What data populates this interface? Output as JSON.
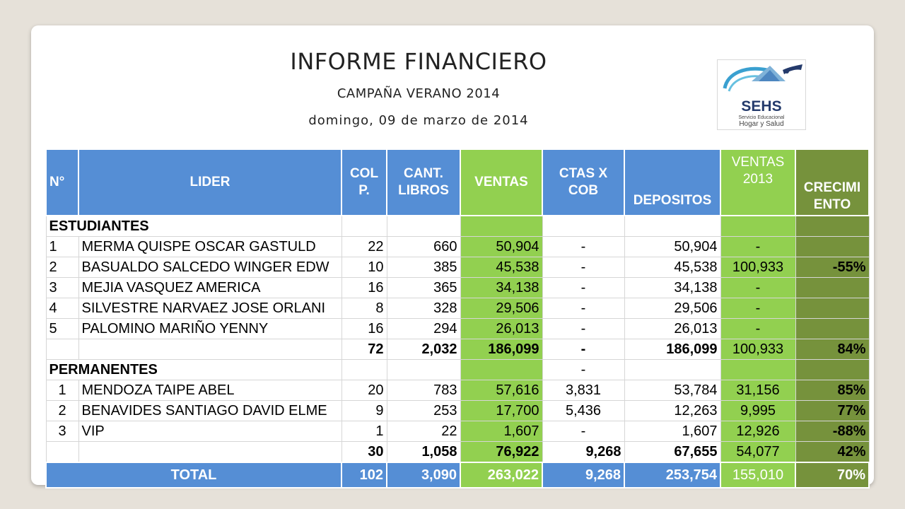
{
  "title": "INFORME FINANCIERO",
  "subtitle": "CAMPAÑA VERANO 2014",
  "date": "domingo, 09 de marzo de 2014",
  "logo": {
    "name": "SEHS",
    "line1": "Servicio Educacional",
    "line2": "Hogar y Salud"
  },
  "colors": {
    "blue_header": "#558ed5",
    "green": "#92d050",
    "dark_green": "#76923c"
  },
  "headers": {
    "n": "N°",
    "lider": "LIDER",
    "col_line1": "COL",
    "col_line2": "P.",
    "cant_line1": "CANT.",
    "cant_line2": "LIBROS",
    "ventas": "VENTAS",
    "ctas_line1": "CTAS X",
    "ctas_line2": "COB",
    "depositos": "DEPOSITOS",
    "v2013_line1": "VENTAS",
    "v2013_line2": "2013",
    "crec_line1": "CRECIMI",
    "crec_line2": "ENTO"
  },
  "sections": [
    {
      "name": "ESTUDIANTES",
      "ctas_cell": "",
      "rows": [
        {
          "n": "1",
          "lider": "MERMA QUISPE OSCAR GASTULD",
          "col": "22",
          "cant": "660",
          "ventas": "50,904",
          "ctas": "-",
          "depositos": "50,904",
          "v2013": "-",
          "crec": ""
        },
        {
          "n": "2",
          "lider": "BASUALDO SALCEDO WINGER EDW",
          "col": "10",
          "cant": "385",
          "ventas": "45,538",
          "ctas": "-",
          "depositos": "45,538",
          "v2013": "100,933",
          "crec": "-55%"
        },
        {
          "n": "3",
          "lider": "MEJIA VASQUEZ AMERICA",
          "col": "16",
          "cant": "365",
          "ventas": "34,138",
          "ctas": "-",
          "depositos": "34,138",
          "v2013": "-",
          "crec": ""
        },
        {
          "n": "4",
          "lider": "SILVESTRE NARVAEZ JOSE ORLANI",
          "col": "8",
          "cant": "328",
          "ventas": "29,506",
          "ctas": "-",
          "depositos": "29,506",
          "v2013": "-",
          "crec": ""
        },
        {
          "n": "5",
          "lider": "PALOMINO MARIÑO YENNY",
          "col": "16",
          "cant": "294",
          "ventas": "26,013",
          "ctas": "-",
          "depositos": "26,013",
          "v2013": "-",
          "crec": ""
        }
      ],
      "subtotal": {
        "col": "72",
        "cant": "2,032",
        "ventas": "186,099",
        "ctas": "-",
        "depositos": "186,099",
        "v2013": "100,933",
        "crec": "84%"
      }
    },
    {
      "name": "PERMANENTES",
      "ctas_cell": "-",
      "rows": [
        {
          "n": "1",
          "lider": "MENDOZA TAIPE ABEL",
          "col": "20",
          "cant": "783",
          "ventas": "57,616",
          "ctas": "3,831",
          "depositos": "53,784",
          "v2013": "31,156",
          "crec": "85%"
        },
        {
          "n": "2",
          "lider": "BENAVIDES SANTIAGO DAVID ELME",
          "col": "9",
          "cant": "253",
          "ventas": "17,700",
          "ctas": "5,436",
          "depositos": "12,263",
          "v2013": "9,995",
          "crec": "77%"
        },
        {
          "n": "3",
          "lider": "VIP",
          "col": "1",
          "cant": "22",
          "ventas": "1,607",
          "ctas": "-",
          "depositos": "1,607",
          "v2013": "12,926",
          "crec": "-88%"
        }
      ],
      "subtotal": {
        "col": "30",
        "cant": "1,058",
        "ventas": "76,922",
        "ctas": "9,268",
        "depositos": "67,655",
        "v2013": "54,077",
        "crec": "42%"
      }
    }
  ],
  "total": {
    "label": "TOTAL",
    "col": "102",
    "cant": "3,090",
    "ventas": "263,022",
    "ctas": "9,268",
    "depositos": "253,754",
    "v2013": "155,010",
    "crec": "70%"
  }
}
